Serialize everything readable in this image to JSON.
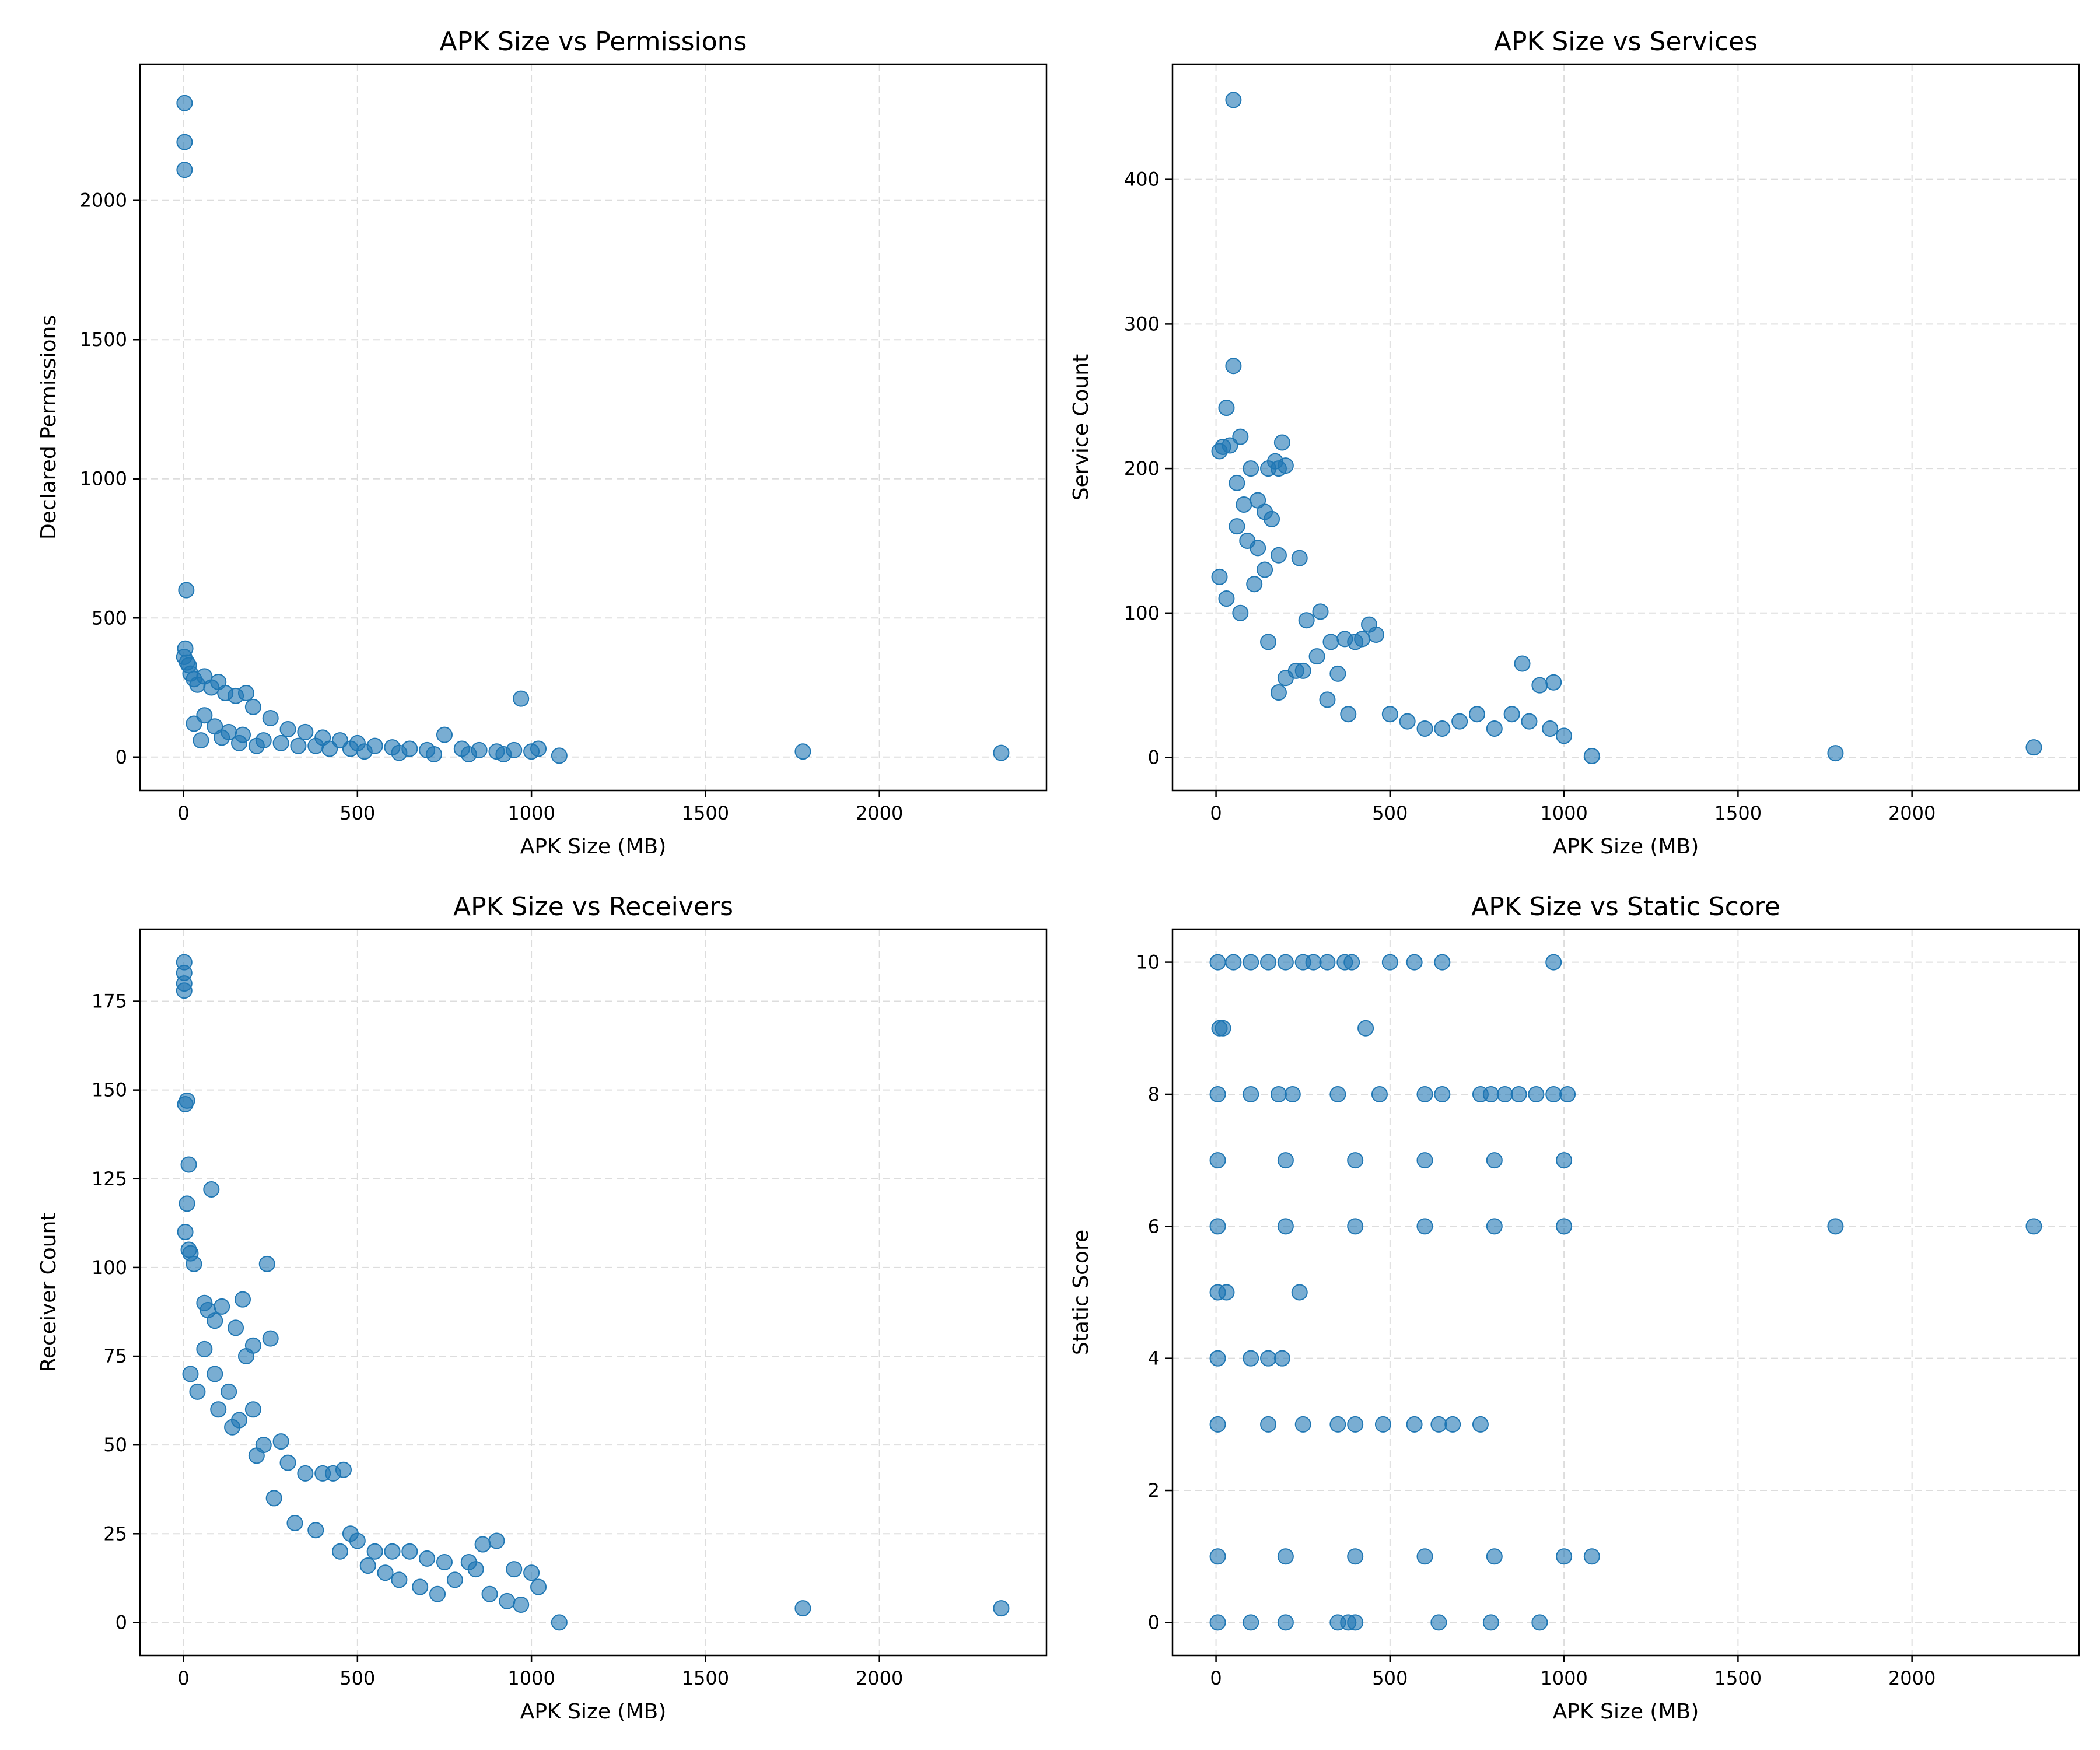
{
  "chart_data": [
    {
      "type": "scatter",
      "title": "APK Size vs Permissions",
      "xlabel": "APK Size (MB)",
      "ylabel": "Declared Permissions",
      "xlim": [
        -125,
        2480
      ],
      "ylim": [
        -120,
        2490
      ],
      "xticks": [
        0,
        500,
        1000,
        1500,
        2000
      ],
      "yticks": [
        0,
        500,
        1000,
        1500,
        2000
      ],
      "grid": true,
      "color": "#1f77b4",
      "series": [
        {
          "x": [
            3,
            3,
            3,
            8,
            5,
            2,
            10,
            15,
            20,
            30,
            40,
            60,
            80,
            100,
            120,
            150,
            180,
            200,
            250,
            300,
            350,
            400,
            450,
            500,
            550,
            600,
            650,
            700,
            750,
            800,
            850,
            900,
            950,
            970,
            1000,
            1020,
            1080,
            1780,
            2350,
            30,
            60,
            90,
            130,
            170,
            230,
            280,
            330,
            380,
            420,
            480,
            520,
            620,
            720,
            820,
            920,
            50,
            110,
            160,
            210
          ],
          "y": [
            2350,
            2210,
            2110,
            600,
            390,
            360,
            340,
            330,
            300,
            280,
            260,
            290,
            250,
            270,
            230,
            220,
            230,
            180,
            140,
            100,
            90,
            70,
            60,
            50,
            40,
            35,
            30,
            25,
            80,
            30,
            25,
            20,
            25,
            210,
            20,
            30,
            5,
            20,
            15,
            120,
            150,
            110,
            90,
            80,
            60,
            50,
            40,
            40,
            30,
            30,
            20,
            15,
            10,
            10,
            10,
            60,
            70,
            50,
            40
          ]
        }
      ]
    },
    {
      "type": "scatter",
      "title": "APK Size vs Services",
      "xlabel": "APK Size (MB)",
      "ylabel": "Service Count",
      "xlim": [
        -125,
        2480
      ],
      "ylim": [
        -22.8,
        479.8
      ],
      "xticks": [
        0,
        500,
        1000,
        1500,
        2000
      ],
      "yticks": [
        0,
        100,
        200,
        300,
        400
      ],
      "grid": true,
      "color": "#1f77b4",
      "series": [
        {
          "x": [
            50,
            50,
            30,
            10,
            20,
            40,
            60,
            70,
            80,
            100,
            120,
            140,
            150,
            160,
            170,
            180,
            190,
            200,
            120,
            60,
            90,
            140,
            180,
            240,
            260,
            300,
            330,
            370,
            400,
            420,
            440,
            460,
            350,
            290,
            230,
            200,
            180,
            500,
            550,
            600,
            650,
            700,
            750,
            800,
            850,
            880,
            930,
            970,
            1000,
            1080,
            1780,
            2350,
            10,
            30,
            70,
            110,
            150,
            250,
            320,
            380,
            900,
            960
          ],
          "y": [
            455,
            271,
            242,
            212,
            215,
            216,
            190,
            222,
            175,
            200,
            178,
            170,
            200,
            165,
            205,
            200,
            218,
            202,
            145,
            160,
            150,
            130,
            140,
            138,
            95,
            101,
            80,
            82,
            80,
            82,
            92,
            85,
            58,
            70,
            60,
            55,
            45,
            30,
            25,
            20,
            20,
            25,
            30,
            20,
            30,
            65,
            50,
            52,
            15,
            1,
            3,
            7,
            125,
            110,
            100,
            120,
            80,
            60,
            40,
            30,
            25,
            20
          ]
        }
      ]
    },
    {
      "type": "scatter",
      "title": "APK Size vs Receivers",
      "xlabel": "APK Size (MB)",
      "ylabel": "Receiver Count",
      "xlim": [
        -125,
        2480
      ],
      "ylim": [
        -9.3,
        195.3
      ],
      "xticks": [
        0,
        500,
        1000,
        1500,
        2000
      ],
      "yticks": [
        0,
        25,
        50,
        75,
        100,
        125,
        150,
        175
      ],
      "grid": true,
      "color": "#1f77b4",
      "series": [
        {
          "x": [
            2,
            2,
            2,
            2,
            5,
            10,
            15,
            10,
            5,
            15,
            20,
            30,
            80,
            60,
            70,
            90,
            110,
            150,
            170,
            200,
            180,
            240,
            250,
            60,
            90,
            130,
            160,
            200,
            230,
            280,
            300,
            350,
            400,
            430,
            460,
            480,
            500,
            550,
            600,
            650,
            700,
            750,
            820,
            860,
            900,
            950,
            1000,
            1020,
            1080,
            1780,
            2350,
            20,
            40,
            100,
            140,
            210,
            260,
            320,
            380,
            450,
            530,
            580,
            620,
            680,
            730,
            780,
            840,
            880,
            930,
            970
          ],
          "y": [
            186,
            183,
            180,
            178,
            146,
            147,
            129,
            118,
            110,
            105,
            104,
            101,
            122,
            90,
            88,
            85,
            89,
            83,
            91,
            78,
            75,
            101,
            80,
            77,
            70,
            65,
            57,
            60,
            50,
            51,
            45,
            42,
            42,
            42,
            43,
            25,
            23,
            20,
            20,
            20,
            18,
            17,
            17,
            22,
            23,
            15,
            14,
            10,
            0,
            4,
            4,
            70,
            65,
            60,
            55,
            47,
            35,
            28,
            26,
            20,
            16,
            14,
            12,
            10,
            8,
            12,
            15,
            8,
            6,
            5
          ]
        }
      ]
    },
    {
      "type": "scatter",
      "title": "APK Size vs Static Score",
      "xlabel": "APK Size (MB)",
      "ylabel": "Static Score",
      "xlim": [
        -125,
        2480
      ],
      "ylim": [
        -0.5,
        10.5
      ],
      "xticks": [
        0,
        500,
        1000,
        1500,
        2000
      ],
      "yticks": [
        0,
        2,
        4,
        6,
        8,
        10
      ],
      "grid": true,
      "color": "#1f77b4",
      "series": [
        {
          "x": [
            5,
            50,
            100,
            150,
            200,
            250,
            280,
            320,
            370,
            390,
            500,
            570,
            650,
            970,
            10,
            20,
            430,
            5,
            100,
            180,
            220,
            350,
            470,
            600,
            650,
            760,
            790,
            830,
            870,
            920,
            970,
            1010,
            5,
            200,
            400,
            600,
            800,
            1000,
            5,
            200,
            400,
            600,
            800,
            1000,
            1780,
            2350,
            5,
            30,
            240,
            5,
            100,
            150,
            190,
            5,
            150,
            250,
            350,
            400,
            480,
            570,
            640,
            680,
            760,
            5,
            200,
            400,
            600,
            800,
            1000,
            1080,
            5,
            100,
            200,
            350,
            380,
            400,
            640,
            790,
            930
          ],
          "y": [
            10,
            10,
            10,
            10,
            10,
            10,
            10,
            10,
            10,
            10,
            10,
            10,
            10,
            10,
            9,
            9,
            9,
            8,
            8,
            8,
            8,
            8,
            8,
            8,
            8,
            8,
            8,
            8,
            8,
            8,
            8,
            8,
            7,
            7,
            7,
            7,
            7,
            7,
            6,
            6,
            6,
            6,
            6,
            6,
            6,
            6,
            5,
            5,
            5,
            4,
            4,
            4,
            4,
            3,
            3,
            3,
            3,
            3,
            3,
            3,
            3,
            3,
            3,
            1,
            1,
            1,
            1,
            1,
            1,
            1,
            0,
            0,
            0,
            0,
            0,
            0,
            0,
            0,
            0
          ]
        }
      ]
    }
  ]
}
